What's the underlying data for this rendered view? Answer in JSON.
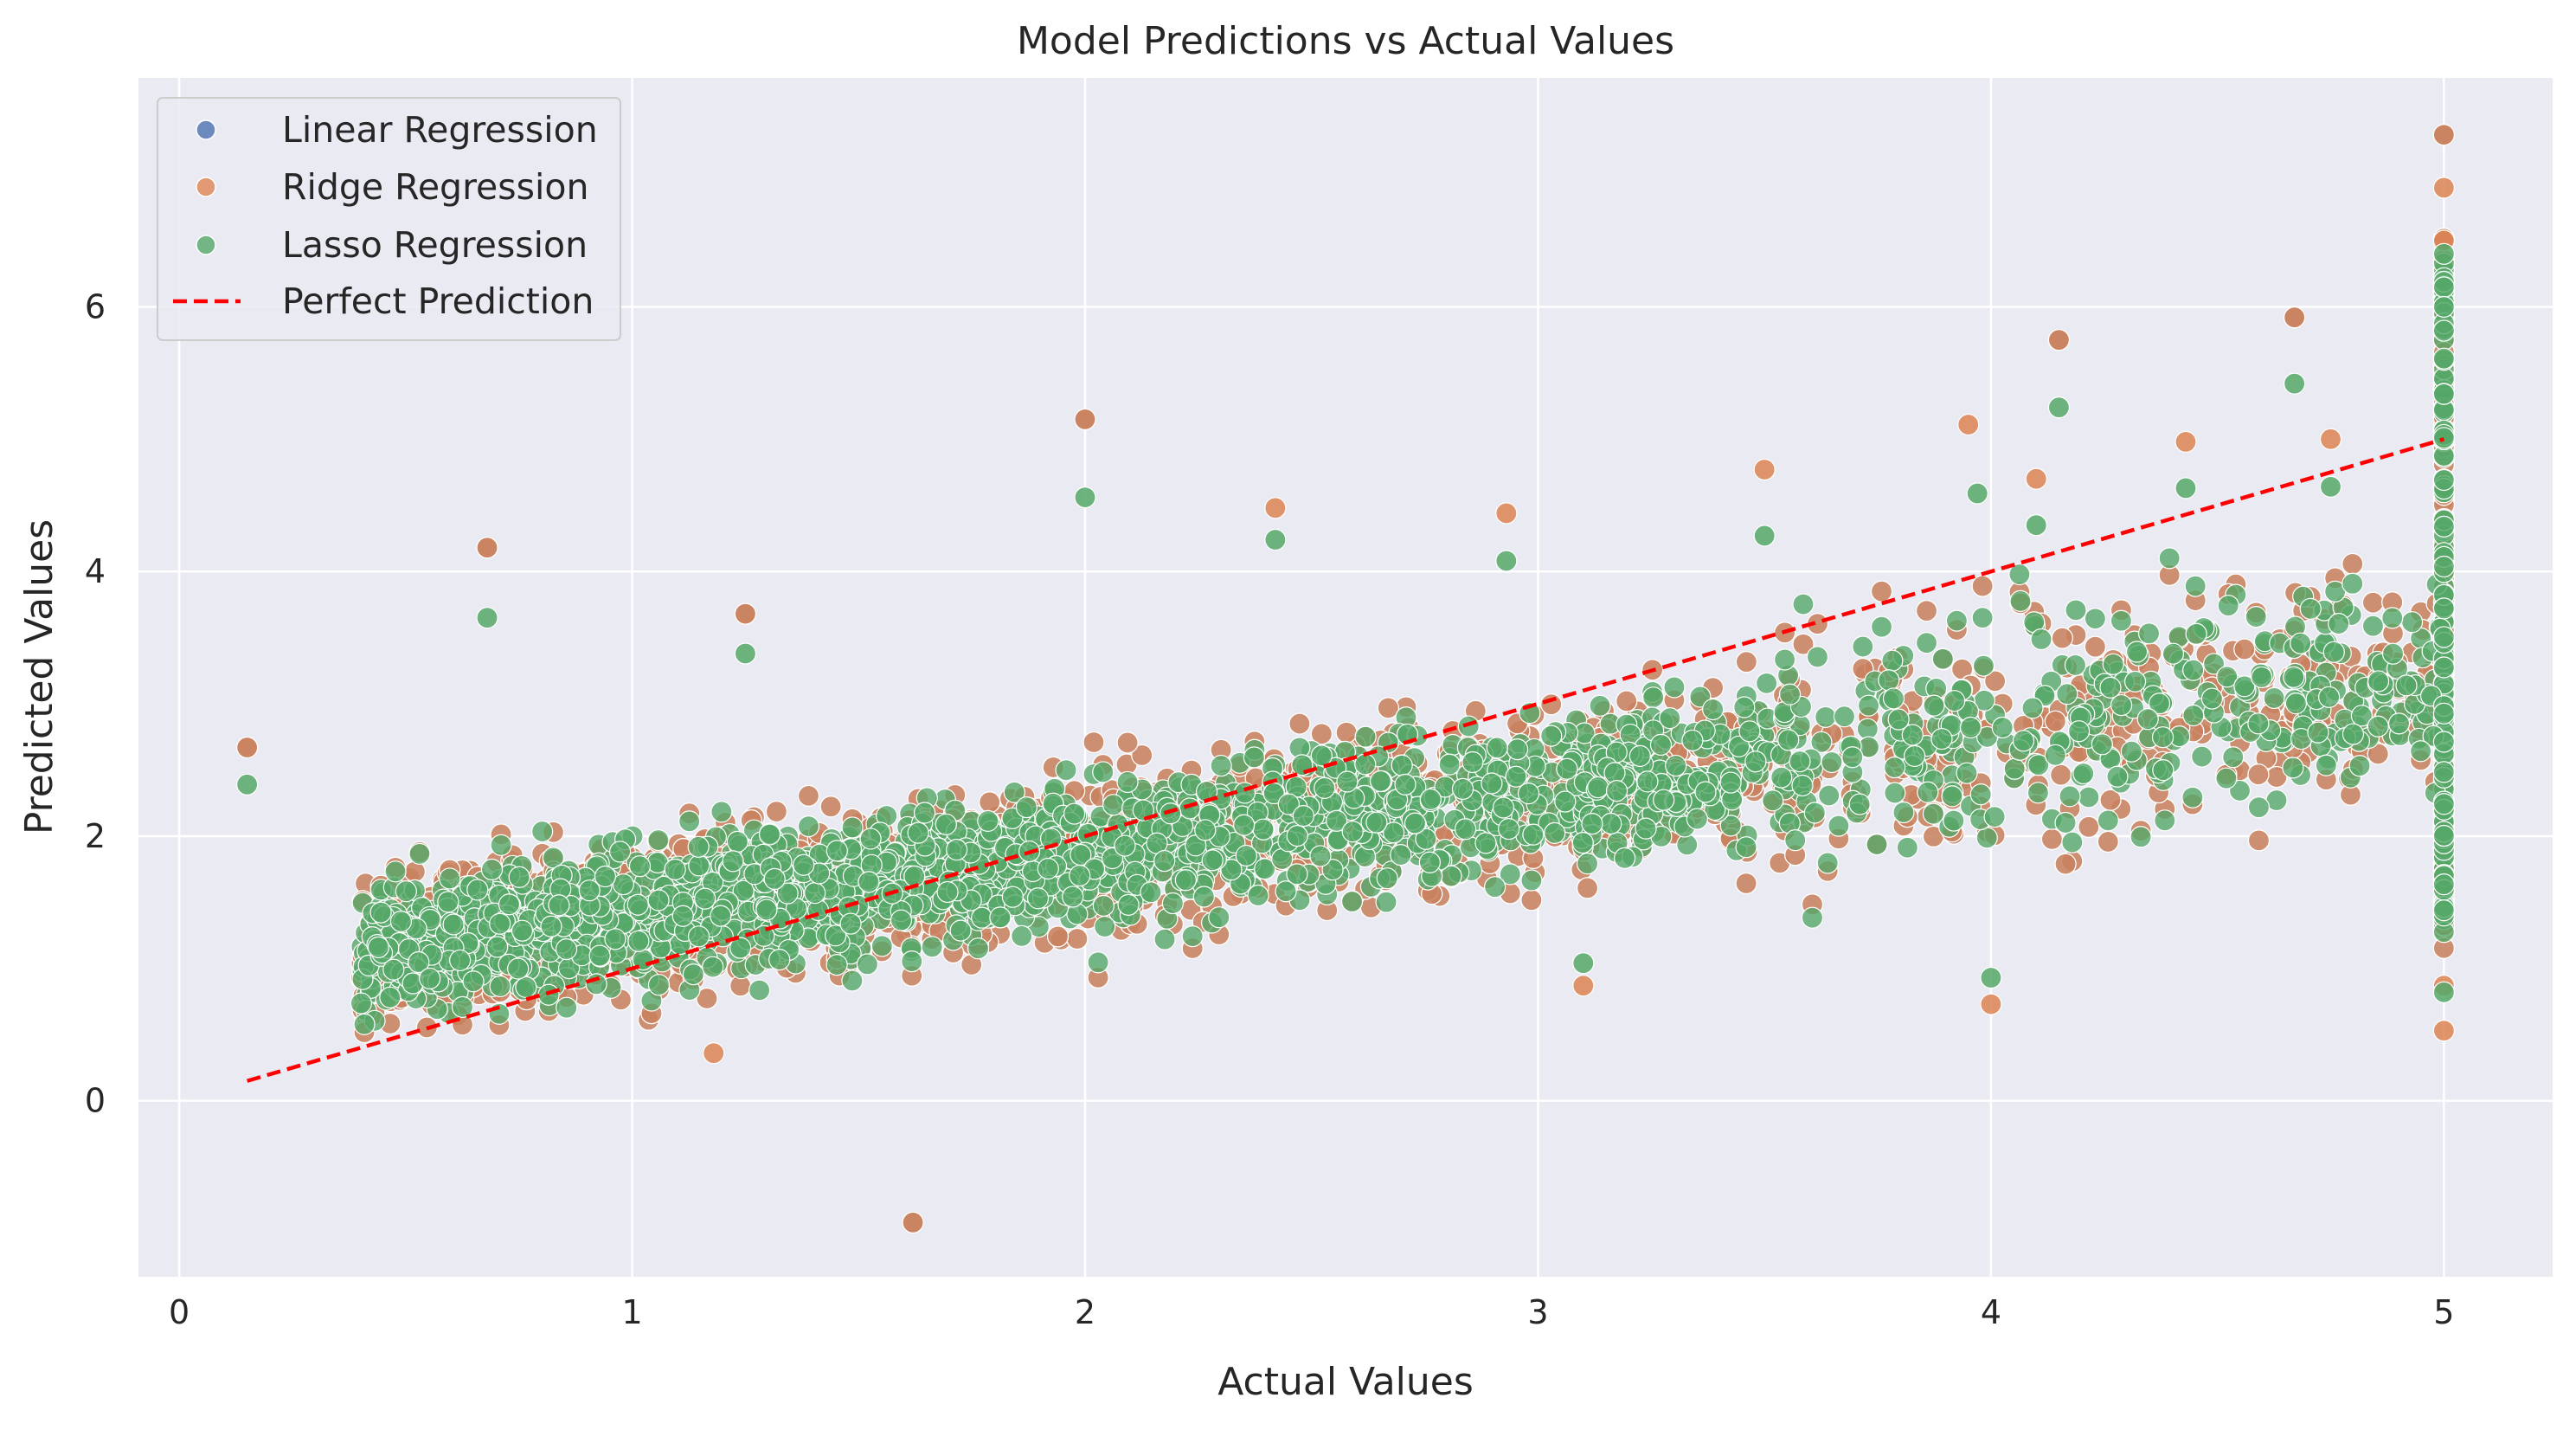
{
  "chart_data": {
    "type": "scatter",
    "title": "Model Predictions vs Actual Values",
    "xlabel": "Actual Values",
    "ylabel": "Predicted Values",
    "xlim": [
      -0.09,
      5.24
    ],
    "ylim": [
      -1.33,
      7.73
    ],
    "xticks": [
      0,
      1,
      2,
      3,
      4,
      5
    ],
    "yticks": [
      0,
      2,
      4,
      6
    ],
    "grid": true,
    "legend_position": "top-left",
    "colors": {
      "background": "#eaeaf2",
      "grid": "#ffffff",
      "linear": "#4c72b0",
      "ridge": "#dd8452",
      "lasso": "#55a868",
      "perfect": "#ff0000"
    },
    "series": [
      {
        "name": "Linear Regression",
        "marker": "circle",
        "color": "#4c72b0",
        "points": [
          [
            0.15,
            2.67
          ],
          [
            0.68,
            4.18
          ],
          [
            1.25,
            3.68
          ],
          [
            2.0,
            5.15
          ],
          [
            4.15,
            5.75
          ],
          [
            4.67,
            5.92
          ],
          [
            1.62,
            -0.92
          ],
          [
            5.0,
            7.3
          ]
        ]
      },
      {
        "name": "Ridge Regression",
        "marker": "circle",
        "color": "#dd8452",
        "points": [
          [
            0.15,
            2.67
          ],
          [
            0.68,
            4.18
          ],
          [
            1.25,
            3.68
          ],
          [
            2.0,
            5.15
          ],
          [
            2.42,
            4.48
          ],
          [
            2.93,
            4.44
          ],
          [
            3.5,
            4.77
          ],
          [
            3.95,
            5.11
          ],
          [
            4.1,
            4.7
          ],
          [
            4.15,
            5.75
          ],
          [
            4.43,
            4.98
          ],
          [
            4.67,
            5.92
          ],
          [
            4.75,
            5.0
          ],
          [
            1.62,
            -0.92
          ],
          [
            1.18,
            0.36
          ],
          [
            3.1,
            0.87
          ],
          [
            4.0,
            0.73
          ],
          [
            5.0,
            7.3
          ],
          [
            5.0,
            6.9
          ],
          [
            5.0,
            6.5
          ],
          [
            5.0,
            0.53
          ],
          [
            5.0,
            0.87
          ]
        ]
      },
      {
        "name": "Lasso Regression",
        "marker": "circle",
        "color": "#55a868",
        "points": [
          [
            0.15,
            2.39
          ],
          [
            0.68,
            3.65
          ],
          [
            1.25,
            3.38
          ],
          [
            2.0,
            4.56
          ],
          [
            2.42,
            4.24
          ],
          [
            2.93,
            4.08
          ],
          [
            3.5,
            4.27
          ],
          [
            3.97,
            4.59
          ],
          [
            4.1,
            4.35
          ],
          [
            4.15,
            5.24
          ],
          [
            4.43,
            4.63
          ],
          [
            4.67,
            5.42
          ],
          [
            4.75,
            4.64
          ],
          [
            3.1,
            1.04
          ],
          [
            4.0,
            0.93
          ],
          [
            5.0,
            6.4
          ],
          [
            5.0,
            6.0
          ],
          [
            5.0,
            0.82
          ]
        ]
      },
      {
        "name": "Perfect Prediction",
        "line_style": "dashed",
        "color": "#ff0000",
        "x": [
          0.15,
          5.0
        ],
        "y": [
          0.15,
          5.0
        ]
      }
    ]
  }
}
